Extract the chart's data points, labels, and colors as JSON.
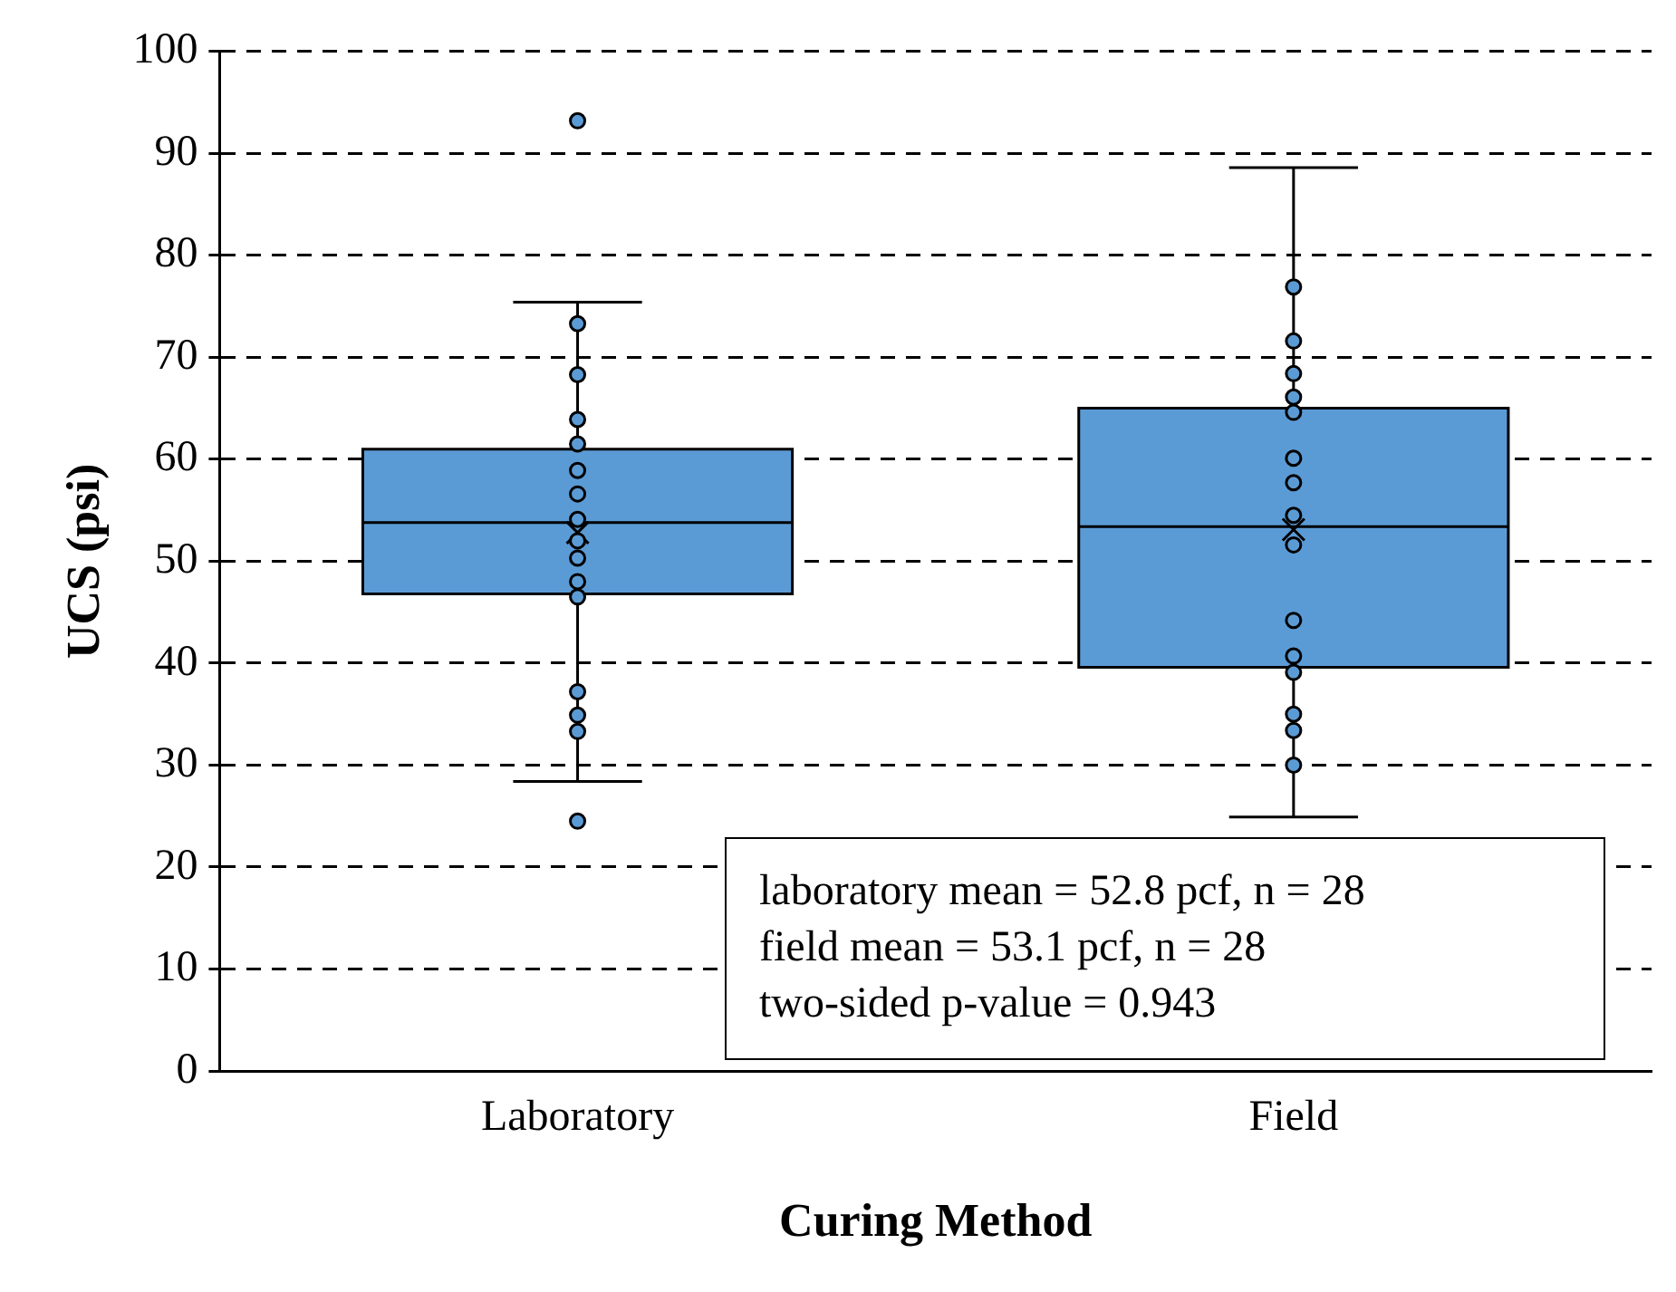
{
  "chart_data": {
    "type": "box",
    "xlabel": "Curing Method",
    "ylabel": "UCS (psi)",
    "categories": [
      "Laboratory",
      "Field"
    ],
    "color": "#5b9bd5",
    "boxes": [
      {
        "low": 28.4,
        "q1": 46.8,
        "median": 53.8,
        "q3": 61.0,
        "high": 75.4,
        "mean": 52.8,
        "outliers": [
          93.2,
          24.5
        ]
      },
      {
        "low": 24.9,
        "q1": 39.6,
        "median": 53.4,
        "q3": 65.0,
        "high": 88.6,
        "mean": 53.1
      }
    ],
    "series": [
      {
        "type": "scatter",
        "color": "#5b9bd5",
        "x": [
          "Laboratory",
          "Laboratory",
          "Laboratory",
          "Laboratory",
          "Laboratory",
          "Laboratory",
          "Laboratory",
          "Laboratory",
          "Laboratory",
          "Laboratory",
          "Laboratory",
          "Laboratory",
          "Laboratory",
          "Laboratory"
        ],
        "values": [
          73.3,
          68.3,
          63.9,
          61.5,
          58.9,
          56.6,
          54.1,
          52.0,
          50.3,
          48.0,
          46.5,
          37.2,
          34.9,
          33.3
        ]
      },
      {
        "type": "scatter",
        "color": "#5b9bd5",
        "x": [
          "Field",
          "Field",
          "Field",
          "Field",
          "Field",
          "Field",
          "Field",
          "Field",
          "Field",
          "Field",
          "Field",
          "Field",
          "Field",
          "Field",
          "Field"
        ],
        "values": [
          76.9,
          71.6,
          68.4,
          66.1,
          64.6,
          60.1,
          57.7,
          54.5,
          51.6,
          44.2,
          40.7,
          39.1,
          35.0,
          33.4,
          30.0
        ]
      }
    ],
    "marker": "circle",
    "ylim": [
      0,
      100
    ],
    "yticks": [
      0,
      10,
      20,
      30,
      40,
      50,
      60,
      70,
      80,
      90,
      100
    ],
    "grid": "y",
    "annotations": [
      "laboratory mean = 52.8 pcf, n = 28",
      "field mean = 53.1 pcf, n = 28",
      "two-sided p-value = 0.943"
    ]
  }
}
